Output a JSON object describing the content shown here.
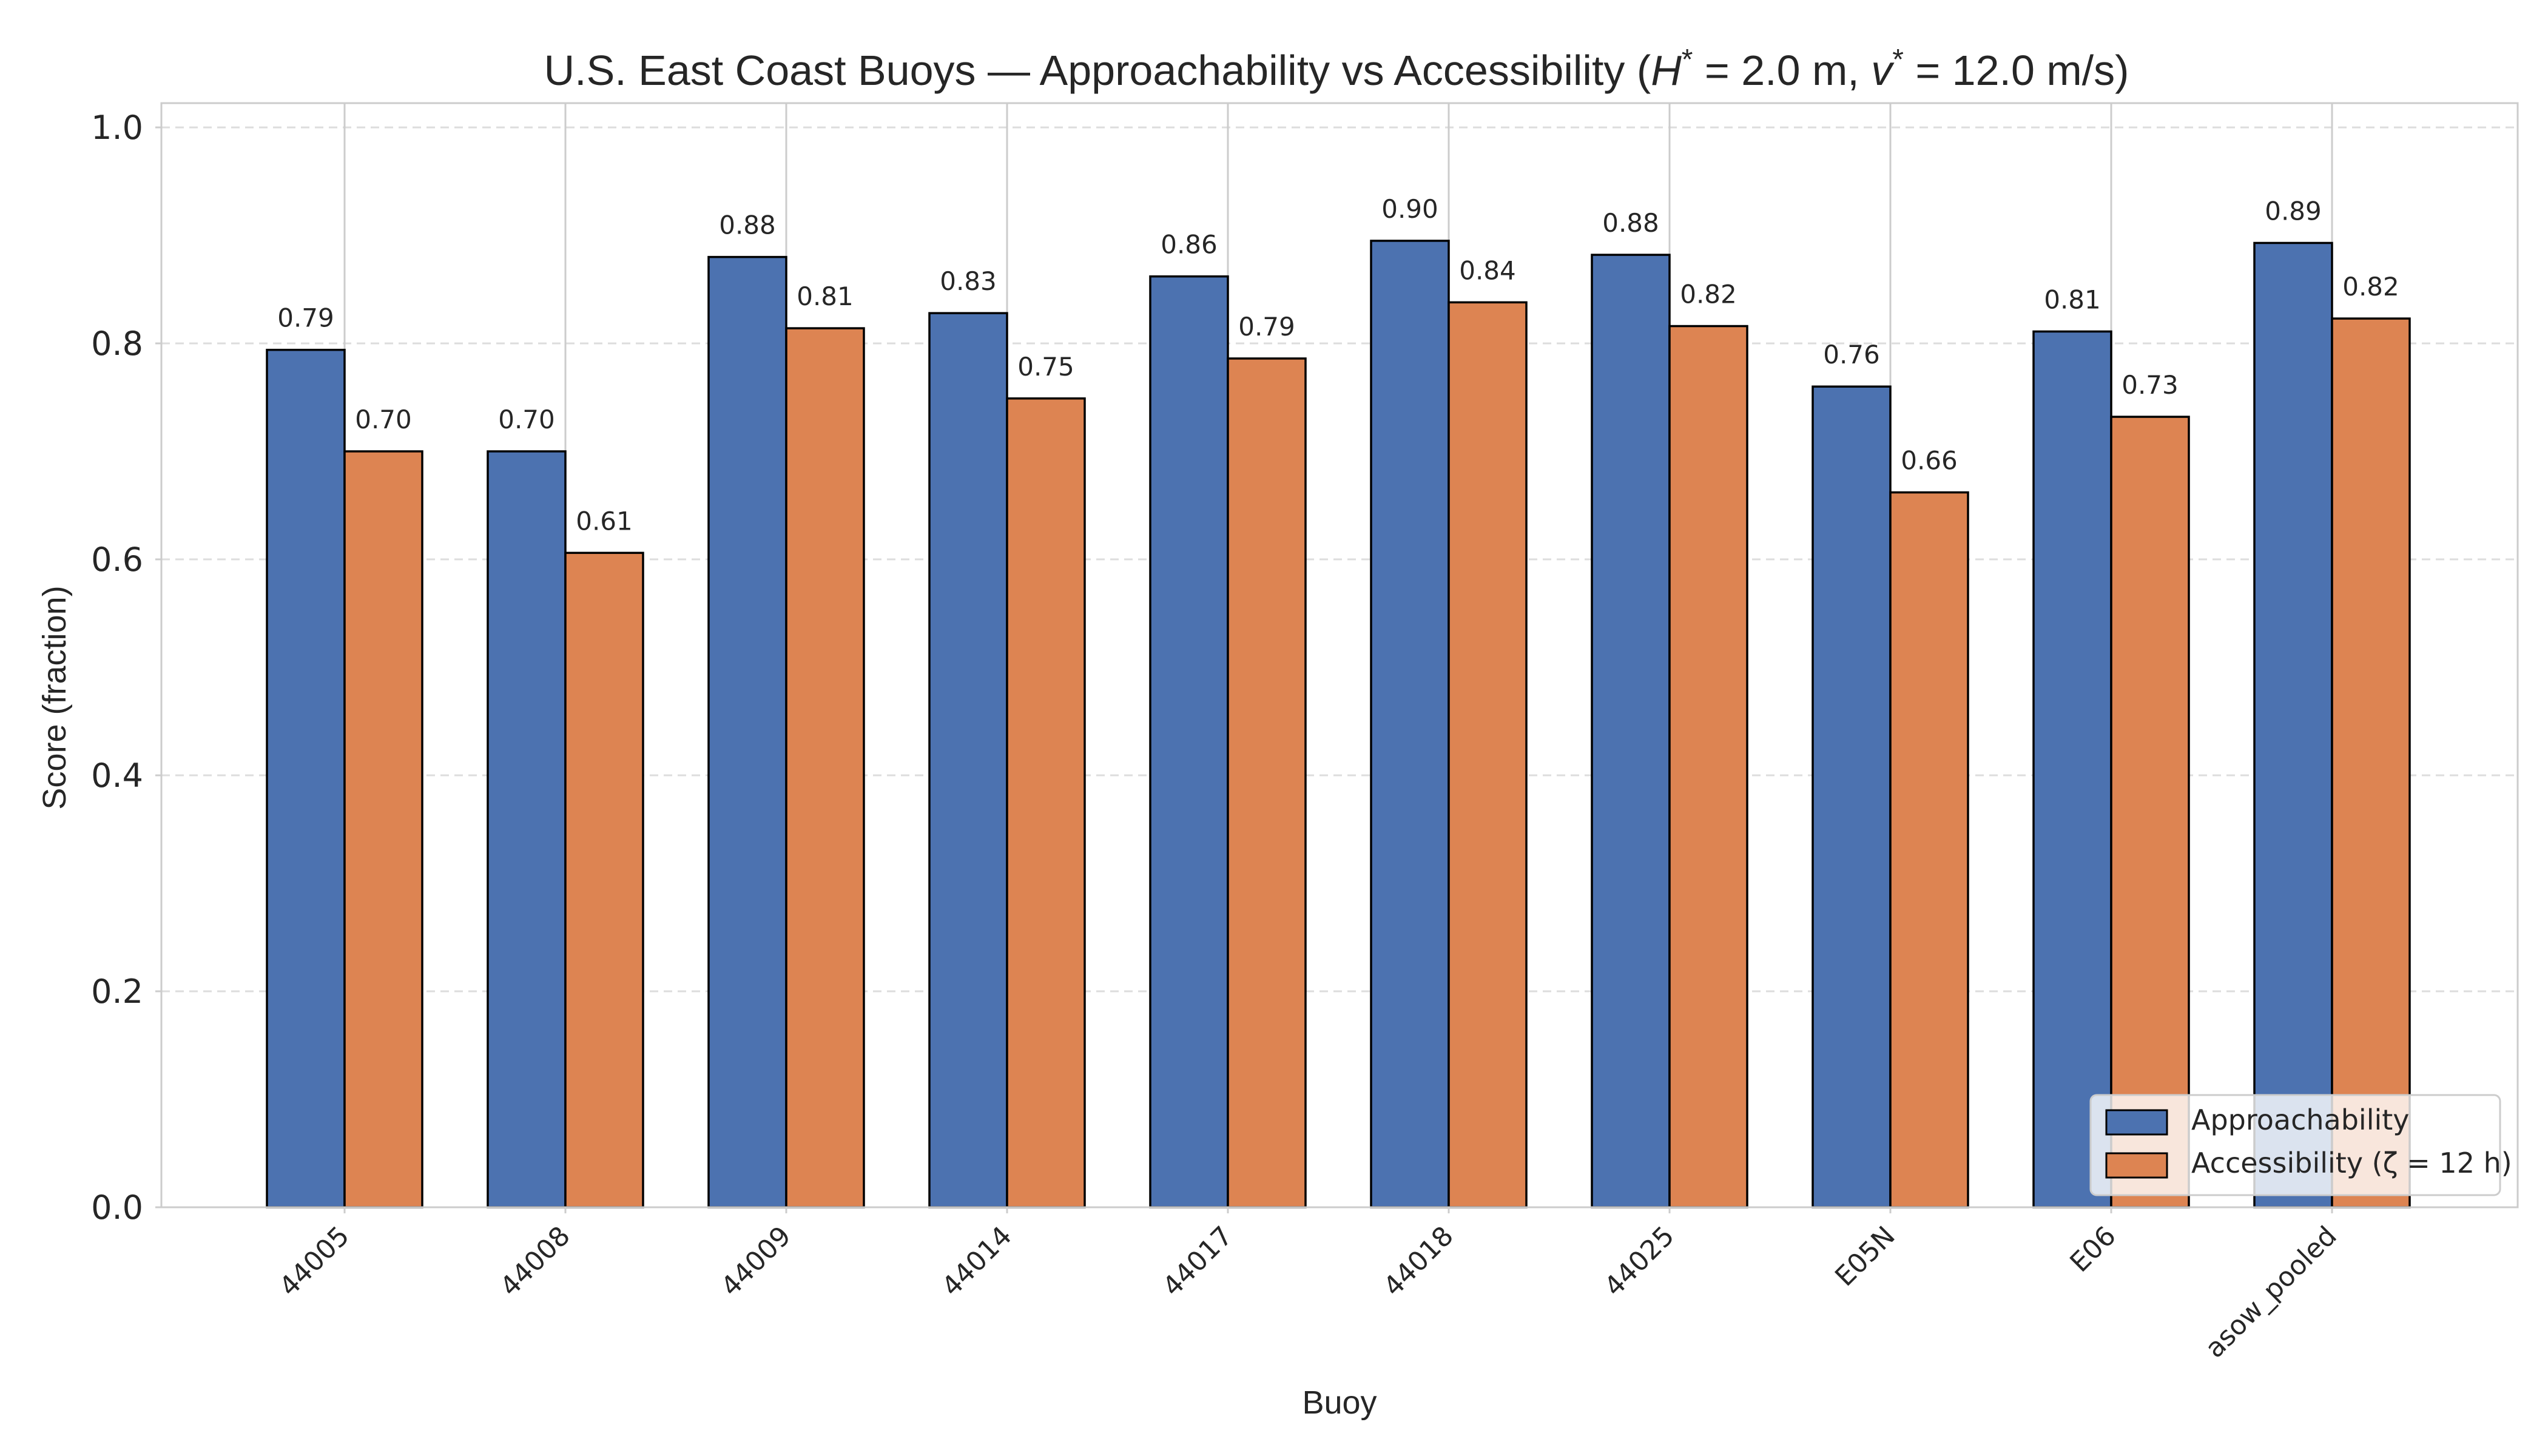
{
  "chart_data": {
    "type": "bar",
    "title_parts": {
      "prefix": "U.S. East Coast Buoys — Approachability vs Accessibility (",
      "h_symbol": "H",
      "h_value": " = 2.0 m, ",
      "v_symbol": "v",
      "v_value": " = 12.0 m/s)",
      "star": "*"
    },
    "xlabel": "Buoy",
    "ylabel": "Score (fraction)",
    "ylim": [
      0,
      1.0
    ],
    "yticks": [
      "0.0",
      "0.2",
      "0.4",
      "0.6",
      "0.8",
      "1.0"
    ],
    "grid": true,
    "legend_position": "bottom-right",
    "categories": [
      "44005",
      "44008",
      "44009",
      "44014",
      "44017",
      "44018",
      "44025",
      "E05N",
      "E06",
      "asow_pooled"
    ],
    "series": [
      {
        "name": "Approachability",
        "color": "#4c72b0",
        "values": [
          0.794,
          0.7,
          0.88,
          0.828,
          0.862,
          0.895,
          0.882,
          0.76,
          0.811,
          0.893
        ],
        "labels": [
          "0.79",
          "0.70",
          "0.88",
          "0.83",
          "0.86",
          "0.90",
          "0.88",
          "0.76",
          "0.81",
          "0.89"
        ]
      },
      {
        "name": "Accessibility (ζ = 12 h)",
        "color": "#dd8452",
        "values": [
          0.7,
          0.606,
          0.814,
          0.749,
          0.786,
          0.838,
          0.816,
          0.662,
          0.732,
          0.823
        ],
        "labels": [
          "0.70",
          "0.61",
          "0.81",
          "0.75",
          "0.79",
          "0.84",
          "0.82",
          "0.66",
          "0.73",
          "0.82"
        ]
      }
    ]
  }
}
